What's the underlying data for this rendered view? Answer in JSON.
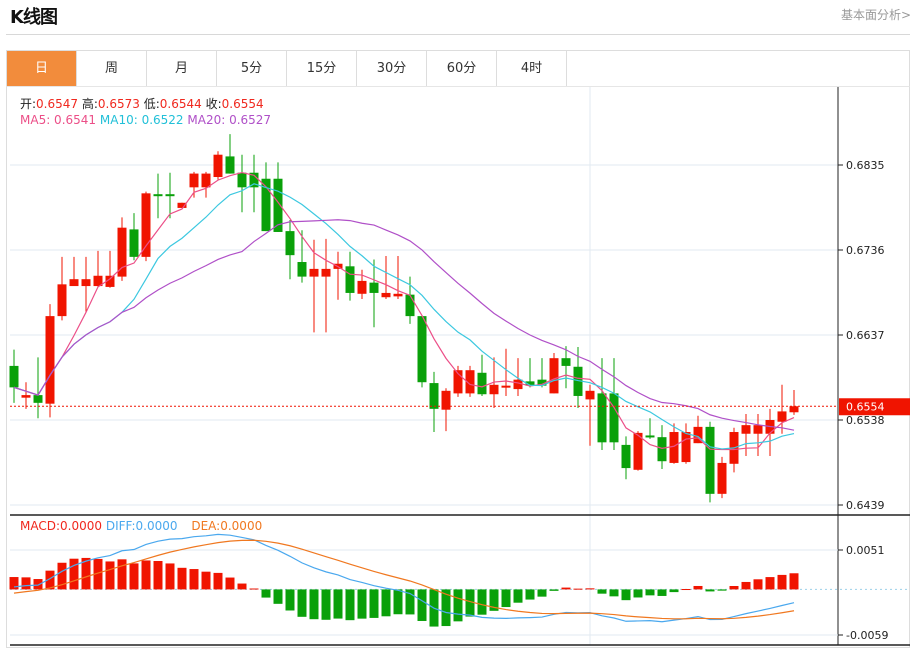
{
  "header": {
    "title": "K线图",
    "fundamental_link": "基本面分析>"
  },
  "tabs": [
    {
      "label": "日",
      "active": true
    },
    {
      "label": "周"
    },
    {
      "label": "月"
    },
    {
      "label": "5分"
    },
    {
      "label": "15分"
    },
    {
      "label": "30分"
    },
    {
      "label": "60分"
    },
    {
      "label": "4时"
    }
  ],
  "ohlc_legend": {
    "open_label": "开:",
    "open": "0.6547",
    "high_label": "高:",
    "high": "0.6573",
    "low_label": "低:",
    "low": "0.6544",
    "close_label": "收:",
    "close": "0.6554"
  },
  "ma_legend": {
    "ma5": "MA5: 0.6541",
    "ma10": "MA10: 0.6522",
    "ma20": "MA20: 0.6527"
  },
  "macd_legend": {
    "macd": "MACD:0.0000",
    "diff": "DIFF:0.0000",
    "dea": "DEA:0.0000"
  },
  "current_price": "0.6554",
  "colors": {
    "up": "#f01400",
    "down": "#0aa00a",
    "ma5": "#ec4f88",
    "ma10": "#3cc8e0",
    "ma20": "#b050c8",
    "diff": "#4aa8ee",
    "dea": "#f07820",
    "accent": "#f28c3c"
  },
  "chart_data": [
    {
      "type": "candlestick",
      "title": "K线图",
      "ylim": [
        0.6439,
        0.6835
      ],
      "yticks": [
        "0.6835",
        "0.6736",
        "0.6637",
        "0.6538",
        "0.6439"
      ],
      "grid": true,
      "ohlc": [
        [
          0.6601,
          0.662,
          0.6558,
          0.6576
        ],
        [
          0.6564,
          0.6582,
          0.6551,
          0.6567
        ],
        [
          0.6567,
          0.6611,
          0.654,
          0.6558
        ],
        [
          0.6557,
          0.6673,
          0.6541,
          0.6659
        ],
        [
          0.6659,
          0.6728,
          0.6654,
          0.6696
        ],
        [
          0.6694,
          0.6728,
          0.6694,
          0.6702
        ],
        [
          0.6694,
          0.6728,
          0.6664,
          0.6702
        ],
        [
          0.6694,
          0.6735,
          0.6693,
          0.6706
        ],
        [
          0.6693,
          0.6735,
          0.6692,
          0.6706
        ],
        [
          0.6705,
          0.6774,
          0.67,
          0.6762
        ],
        [
          0.676,
          0.6779,
          0.6724,
          0.6728
        ],
        [
          0.6728,
          0.6804,
          0.6723,
          0.6802
        ],
        [
          0.6801,
          0.6825,
          0.6773,
          0.6799
        ],
        [
          0.6801,
          0.6826,
          0.6773,
          0.6799
        ],
        [
          0.6785,
          0.6791,
          0.6785,
          0.6791
        ],
        [
          0.6809,
          0.6827,
          0.6797,
          0.6825
        ],
        [
          0.6809,
          0.6827,
          0.6797,
          0.6825
        ],
        [
          0.6821,
          0.6851,
          0.6818,
          0.6847
        ],
        [
          0.6845,
          0.6871,
          0.6825,
          0.6825
        ],
        [
          0.6826,
          0.6847,
          0.678,
          0.6809
        ],
        [
          0.6826,
          0.6847,
          0.678,
          0.6809
        ],
        [
          0.6819,
          0.6838,
          0.6758,
          0.6758
        ],
        [
          0.6819,
          0.6838,
          0.6757,
          0.6757
        ],
        [
          0.6758,
          0.6771,
          0.6702,
          0.673
        ],
        [
          0.6722,
          0.6759,
          0.6698,
          0.6705
        ],
        [
          0.6705,
          0.6748,
          0.664,
          0.6714
        ],
        [
          0.6705,
          0.6749,
          0.664,
          0.6714
        ],
        [
          0.6714,
          0.6734,
          0.6678,
          0.672
        ],
        [
          0.6717,
          0.6734,
          0.6677,
          0.6686
        ],
        [
          0.6685,
          0.6713,
          0.6679,
          0.67
        ],
        [
          0.6698,
          0.6725,
          0.6646,
          0.6686
        ],
        [
          0.6681,
          0.6729,
          0.6679,
          0.6686
        ],
        [
          0.6682,
          0.6729,
          0.6679,
          0.6685
        ],
        [
          0.6684,
          0.6705,
          0.665,
          0.6659
        ],
        [
          0.6659,
          0.6659,
          0.6576,
          0.6582
        ],
        [
          0.6581,
          0.6594,
          0.6524,
          0.6551
        ],
        [
          0.655,
          0.6575,
          0.6525,
          0.6572
        ],
        [
          0.6569,
          0.6601,
          0.6565,
          0.6596
        ],
        [
          0.6569,
          0.6601,
          0.6565,
          0.6596
        ],
        [
          0.6593,
          0.6614,
          0.6566,
          0.6568
        ],
        [
          0.6568,
          0.6611,
          0.6552,
          0.6579
        ],
        [
          0.6576,
          0.6621,
          0.6566,
          0.6578
        ],
        [
          0.6574,
          0.661,
          0.6566,
          0.6585
        ],
        [
          0.6583,
          0.661,
          0.6576,
          0.6578
        ],
        [
          0.6585,
          0.661,
          0.6576,
          0.6578
        ],
        [
          0.6569,
          0.6616,
          0.6569,
          0.661
        ],
        [
          0.661,
          0.6624,
          0.6575,
          0.6601
        ],
        [
          0.66,
          0.6623,
          0.6552,
          0.6566
        ],
        [
          0.6562,
          0.6579,
          0.6508,
          0.6572
        ],
        [
          0.6569,
          0.661,
          0.6503,
          0.6512
        ],
        [
          0.6569,
          0.661,
          0.6503,
          0.6512
        ],
        [
          0.6509,
          0.6519,
          0.6469,
          0.6482
        ],
        [
          0.648,
          0.6525,
          0.6479,
          0.6523
        ],
        [
          0.652,
          0.654,
          0.6516,
          0.6518
        ],
        [
          0.6518,
          0.6532,
          0.6481,
          0.649
        ],
        [
          0.6488,
          0.6534,
          0.6487,
          0.6524
        ],
        [
          0.6489,
          0.6534,
          0.6487,
          0.6524
        ],
        [
          0.6511,
          0.6543,
          0.6511,
          0.653
        ],
        [
          0.653,
          0.6536,
          0.6442,
          0.6452
        ],
        [
          0.6452,
          0.6495,
          0.6447,
          0.6488
        ],
        [
          0.6487,
          0.6529,
          0.6477,
          0.6524
        ],
        [
          0.6522,
          0.6545,
          0.6496,
          0.6532
        ],
        [
          0.6522,
          0.6545,
          0.6496,
          0.6532
        ],
        [
          0.6522,
          0.6551,
          0.6496,
          0.6538
        ],
        [
          0.6536,
          0.6579,
          0.6522,
          0.6548
        ],
        [
          0.6547,
          0.6573,
          0.6544,
          0.6554
        ]
      ],
      "ma_periods": [
        5,
        10,
        20
      ]
    },
    {
      "type": "bar+line",
      "title": "MACD",
      "ylim": [
        -0.0059,
        0.0051
      ],
      "yticks": [
        "0.0051",
        "-0.0059"
      ],
      "series": [
        "MACD",
        "DIFF",
        "DEA"
      ]
    }
  ]
}
